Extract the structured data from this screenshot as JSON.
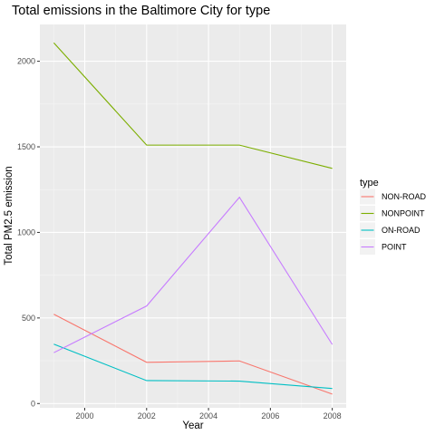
{
  "chart_data": {
    "type": "line",
    "title": "Total emissions in the Baltimore City for type",
    "xlabel": "Year",
    "ylabel": "Total PM2.5 emission",
    "x": [
      1999,
      2002,
      2005,
      2008
    ],
    "xlim": [
      1998.55,
      2008.45
    ],
    "ylim": [
      -25,
      2215
    ],
    "xticks": [
      2000,
      2002,
      2004,
      2006,
      2008
    ],
    "yticks": [
      0,
      500,
      1000,
      1500,
      2000
    ],
    "grid": true,
    "legend": {
      "title": "type",
      "position": "right"
    },
    "series": [
      {
        "name": "NON-ROAD",
        "color": "#F8766D",
        "values": [
          522,
          241,
          249,
          55
        ]
      },
      {
        "name": "NONPOINT",
        "color": "#7CAE00",
        "values": [
          2108,
          1510,
          1510,
          1374
        ]
      },
      {
        "name": "ON-ROAD",
        "color": "#00BFC4",
        "values": [
          347,
          134,
          131,
          88
        ]
      },
      {
        "name": "POINT",
        "color": "#C77CFF",
        "values": [
          297,
          570,
          1205,
          345
        ]
      }
    ]
  }
}
